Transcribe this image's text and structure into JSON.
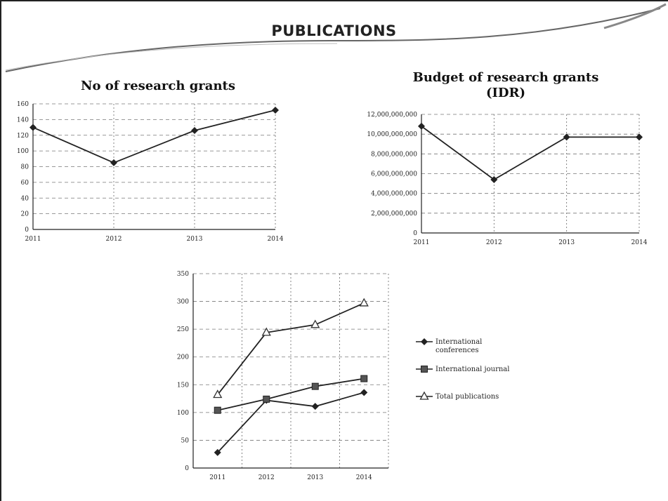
{
  "slide": {
    "title": "PUBLICATIONS"
  },
  "chart_data": [
    {
      "type": "line",
      "title": "No of research grants",
      "x": [
        "2011",
        "2012",
        "2013",
        "2014"
      ],
      "series": [
        {
          "values": [
            130,
            85,
            126,
            152
          ]
        }
      ],
      "ylim": [
        0,
        160
      ],
      "yticks": [
        "0",
        "20",
        "40",
        "60",
        "80",
        "100",
        "120",
        "140",
        "160"
      ],
      "grid": true
    },
    {
      "type": "line",
      "title": "Budget of research grants (IDR)",
      "title_lines": [
        "Budget of research grants",
        "(IDR)"
      ],
      "x": [
        "2011",
        "2012",
        "2013",
        "2014"
      ],
      "series": [
        {
          "values": [
            10800000000,
            5400000000,
            9700000000,
            9700000000
          ]
        }
      ],
      "ylim": [
        0,
        12000000000
      ],
      "yticks": [
        "0",
        "2,000,000,000",
        "4,000,000,000",
        "6,000,000,000",
        "8,000,000,000",
        "10,000,000,000",
        "12,000,000,000"
      ],
      "grid": true
    },
    {
      "type": "line",
      "x": [
        "2011",
        "2012",
        "2013",
        "2014"
      ],
      "series": [
        {
          "name": "International conferences",
          "name_lines": [
            "International",
            "conferences"
          ],
          "marker": "diamond",
          "values": [
            28,
            122,
            111,
            136
          ]
        },
        {
          "name": "International journal",
          "name_lines": [
            "International journal"
          ],
          "marker": "square",
          "values": [
            104,
            124,
            147,
            161
          ]
        },
        {
          "name": "Total publications",
          "name_lines": [
            "Total publications"
          ],
          "marker": "triangle",
          "values": [
            132,
            244,
            258,
            297
          ]
        }
      ],
      "ylim": [
        0,
        350
      ],
      "yticks": [
        "0",
        "50",
        "100",
        "150",
        "200",
        "250",
        "300",
        "350"
      ],
      "grid": true,
      "legend": "right"
    }
  ]
}
